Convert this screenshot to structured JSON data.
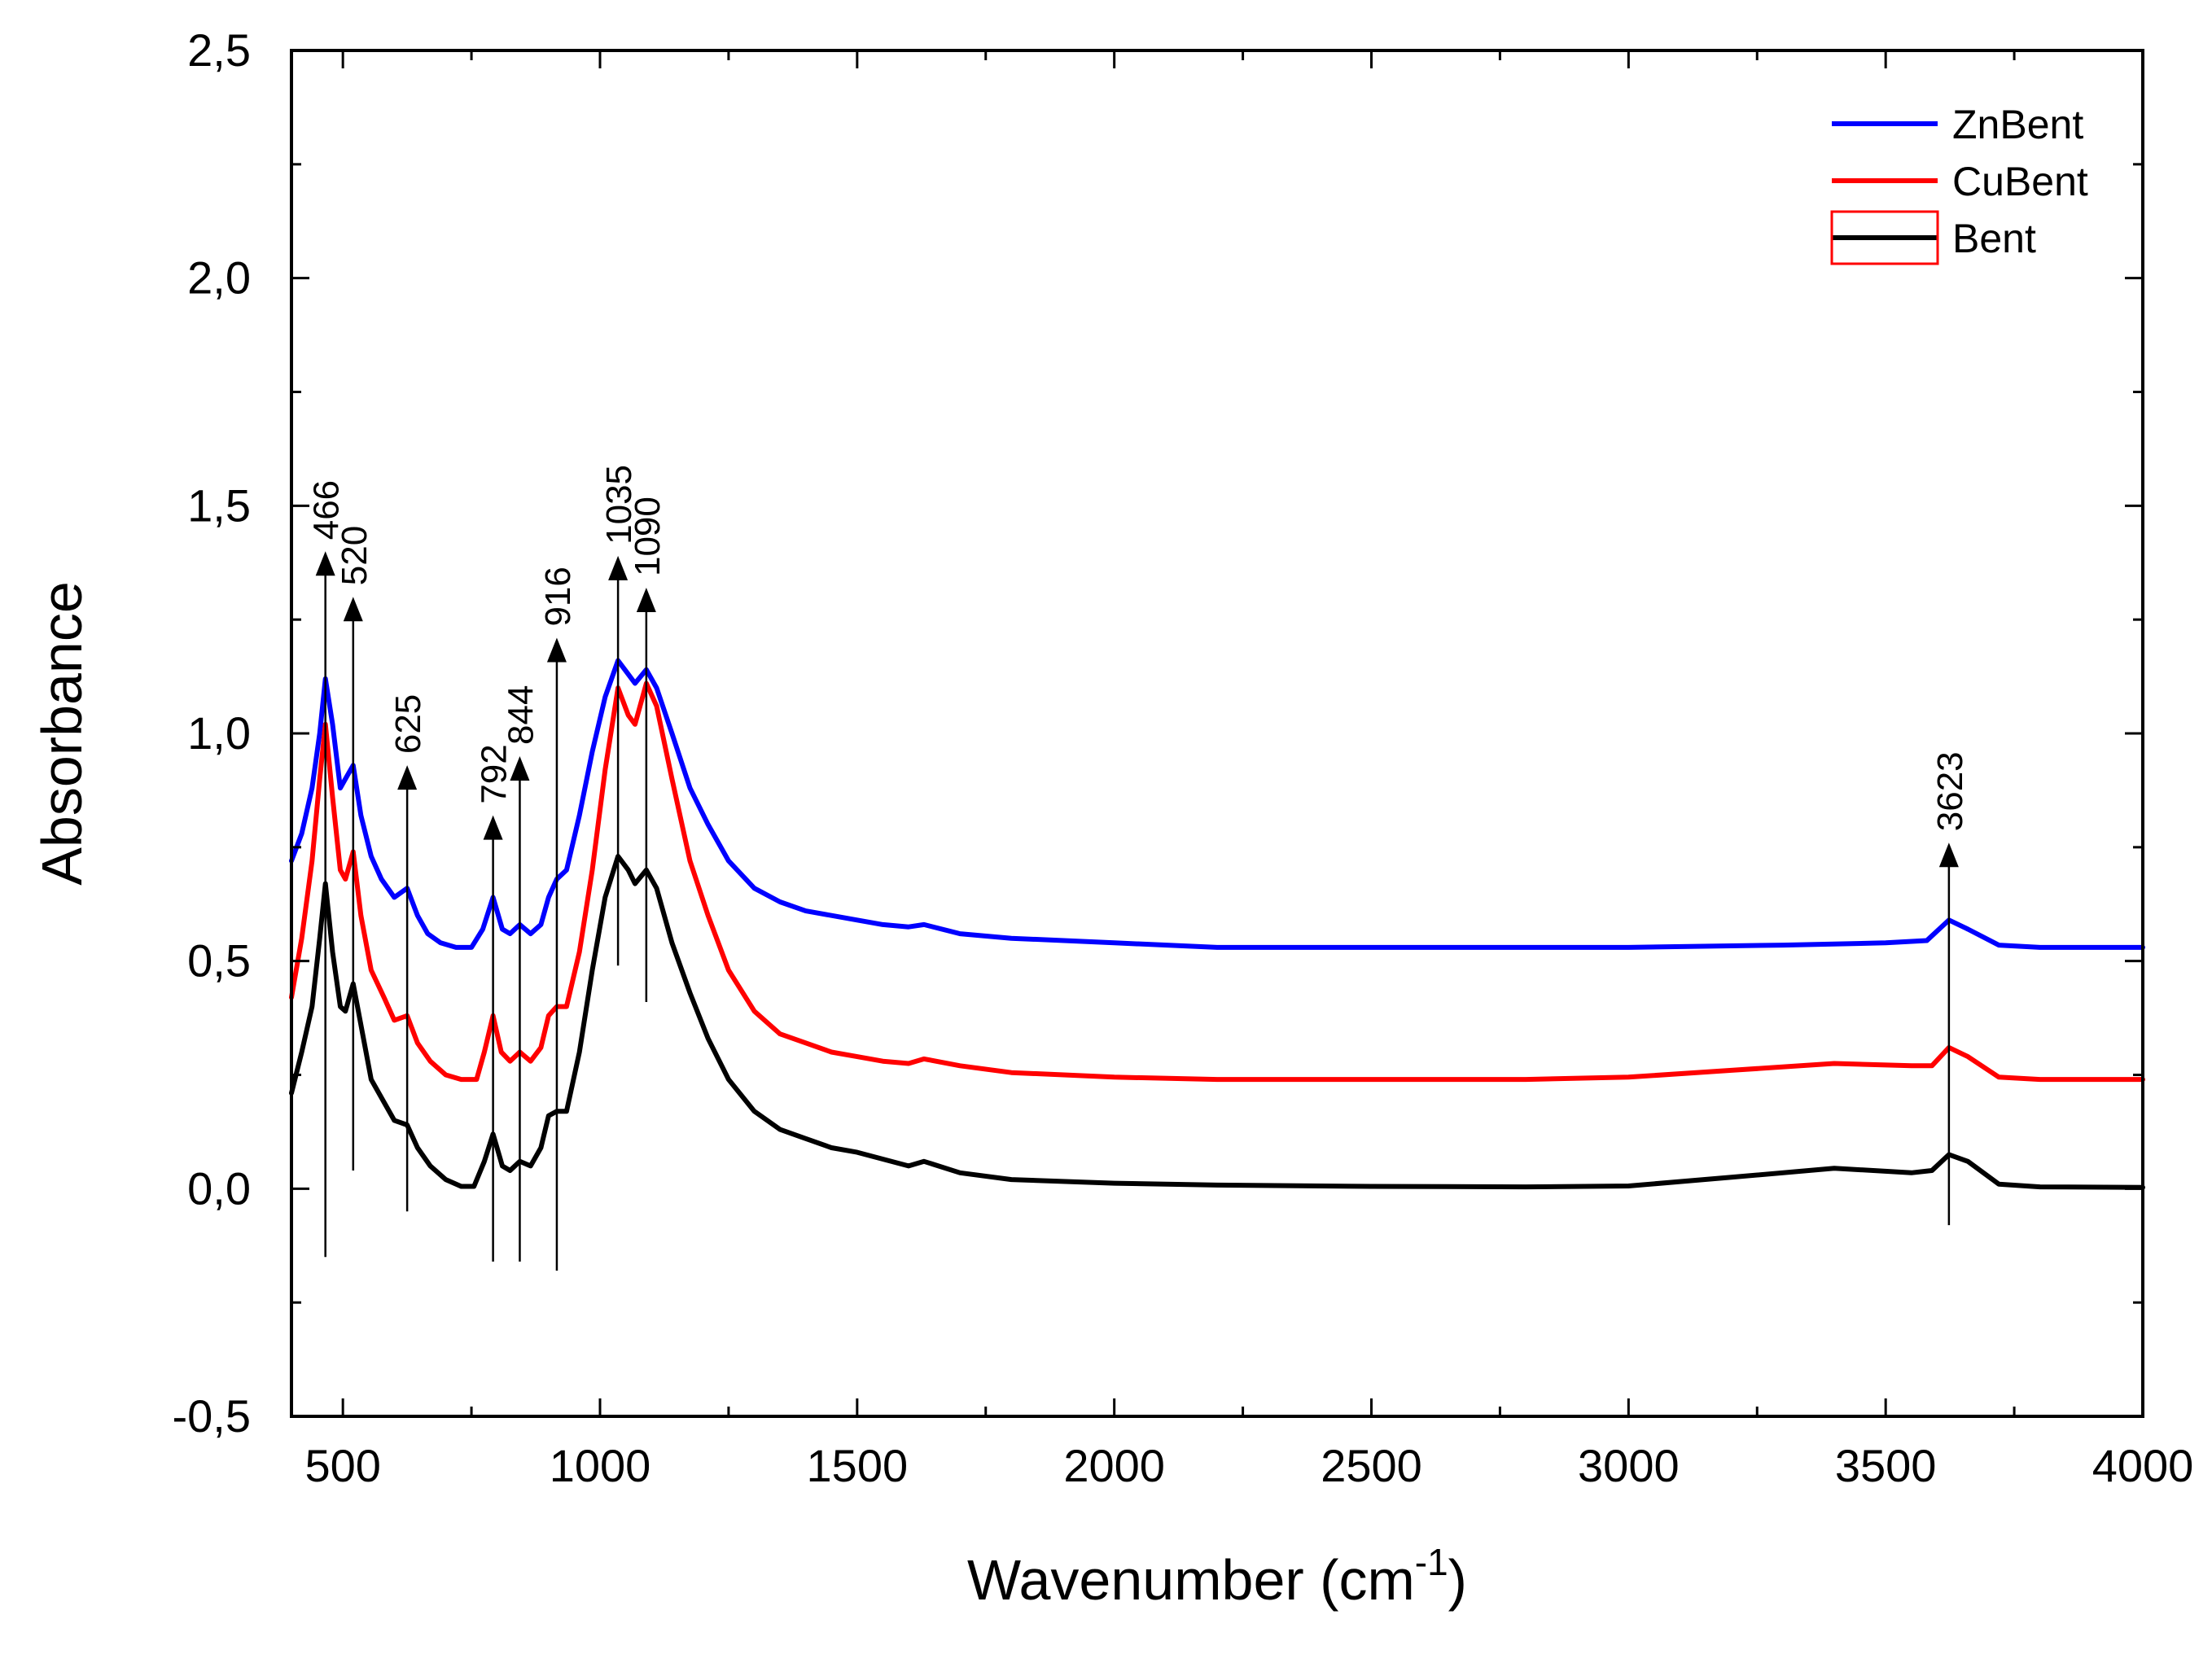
{
  "chart_data": {
    "type": "line",
    "title": "",
    "xlabel": "Wavenumber (cm",
    "xlabel_superscript": "-1",
    "xlabel_suffix": ")",
    "ylabel": "Absorbance",
    "xlim": [
      400,
      4000
    ],
    "ylim": [
      -0.5,
      2.5
    ],
    "xticks": [
      500,
      1000,
      1500,
      2000,
      2500,
      3000,
      3500,
      4000
    ],
    "xtick_labels": [
      "500",
      "1000",
      "1500",
      "2000",
      "2500",
      "3000",
      "3500",
      "4000"
    ],
    "yticks": [
      -0.5,
      0.0,
      0.5,
      1.0,
      1.5,
      2.0,
      2.5
    ],
    "ytick_labels": [
      "-0,5",
      "0,0",
      "0,5",
      "1,0",
      "1,5",
      "2,0",
      "2,5"
    ],
    "grid": false,
    "legend_position": "top-right",
    "series": [
      {
        "name": "ZnBent",
        "color": "#0000ff",
        "points": [
          [
            400,
            0.72
          ],
          [
            420,
            0.78
          ],
          [
            440,
            0.88
          ],
          [
            455,
            1.0
          ],
          [
            466,
            1.12
          ],
          [
            480,
            1.02
          ],
          [
            495,
            0.88
          ],
          [
            505,
            0.9
          ],
          [
            520,
            0.93
          ],
          [
            535,
            0.82
          ],
          [
            555,
            0.73
          ],
          [
            575,
            0.68
          ],
          [
            600,
            0.64
          ],
          [
            625,
            0.66
          ],
          [
            645,
            0.6
          ],
          [
            665,
            0.56
          ],
          [
            690,
            0.54
          ],
          [
            720,
            0.53
          ],
          [
            750,
            0.53
          ],
          [
            772,
            0.57
          ],
          [
            792,
            0.64
          ],
          [
            810,
            0.57
          ],
          [
            825,
            0.56
          ],
          [
            844,
            0.58
          ],
          [
            865,
            0.56
          ],
          [
            885,
            0.58
          ],
          [
            900,
            0.64
          ],
          [
            916,
            0.68
          ],
          [
            935,
            0.7
          ],
          [
            960,
            0.82
          ],
          [
            985,
            0.96
          ],
          [
            1010,
            1.08
          ],
          [
            1035,
            1.16
          ],
          [
            1055,
            1.13
          ],
          [
            1068,
            1.11
          ],
          [
            1090,
            1.14
          ],
          [
            1110,
            1.1
          ],
          [
            1140,
            1.0
          ],
          [
            1175,
            0.88
          ],
          [
            1210,
            0.8
          ],
          [
            1250,
            0.72
          ],
          [
            1300,
            0.66
          ],
          [
            1350,
            0.63
          ],
          [
            1400,
            0.61
          ],
          [
            1450,
            0.6
          ],
          [
            1500,
            0.59
          ],
          [
            1550,
            0.58
          ],
          [
            1600,
            0.575
          ],
          [
            1630,
            0.58
          ],
          [
            1700,
            0.56
          ],
          [
            1800,
            0.55
          ],
          [
            2000,
            0.54
          ],
          [
            2200,
            0.53
          ],
          [
            2500,
            0.53
          ],
          [
            3000,
            0.53
          ],
          [
            3300,
            0.535
          ],
          [
            3500,
            0.54
          ],
          [
            3580,
            0.545
          ],
          [
            3623,
            0.59
          ],
          [
            3660,
            0.57
          ],
          [
            3720,
            0.535
          ],
          [
            3800,
            0.53
          ],
          [
            4000,
            0.53
          ]
        ]
      },
      {
        "name": "CuBent",
        "color": "#ff0000",
        "points": [
          [
            400,
            0.42
          ],
          [
            420,
            0.55
          ],
          [
            440,
            0.72
          ],
          [
            455,
            0.9
          ],
          [
            466,
            1.02
          ],
          [
            480,
            0.86
          ],
          [
            495,
            0.7
          ],
          [
            505,
            0.68
          ],
          [
            520,
            0.74
          ],
          [
            535,
            0.6
          ],
          [
            555,
            0.48
          ],
          [
            580,
            0.42
          ],
          [
            600,
            0.37
          ],
          [
            625,
            0.38
          ],
          [
            645,
            0.32
          ],
          [
            670,
            0.28
          ],
          [
            700,
            0.25
          ],
          [
            730,
            0.24
          ],
          [
            760,
            0.24
          ],
          [
            775,
            0.3
          ],
          [
            792,
            0.38
          ],
          [
            808,
            0.3
          ],
          [
            825,
            0.28
          ],
          [
            844,
            0.3
          ],
          [
            865,
            0.28
          ],
          [
            885,
            0.31
          ],
          [
            900,
            0.38
          ],
          [
            916,
            0.4
          ],
          [
            935,
            0.4
          ],
          [
            960,
            0.52
          ],
          [
            985,
            0.7
          ],
          [
            1010,
            0.92
          ],
          [
            1035,
            1.1
          ],
          [
            1055,
            1.04
          ],
          [
            1068,
            1.02
          ],
          [
            1090,
            1.11
          ],
          [
            1110,
            1.06
          ],
          [
            1140,
            0.9
          ],
          [
            1175,
            0.72
          ],
          [
            1210,
            0.6
          ],
          [
            1250,
            0.48
          ],
          [
            1300,
            0.39
          ],
          [
            1350,
            0.34
          ],
          [
            1400,
            0.32
          ],
          [
            1450,
            0.3
          ],
          [
            1500,
            0.29
          ],
          [
            1550,
            0.28
          ],
          [
            1600,
            0.275
          ],
          [
            1630,
            0.285
          ],
          [
            1700,
            0.27
          ],
          [
            1800,
            0.255
          ],
          [
            2000,
            0.245
          ],
          [
            2200,
            0.24
          ],
          [
            2500,
            0.24
          ],
          [
            2800,
            0.24
          ],
          [
            3000,
            0.245
          ],
          [
            3200,
            0.26
          ],
          [
            3400,
            0.275
          ],
          [
            3550,
            0.27
          ],
          [
            3590,
            0.27
          ],
          [
            3623,
            0.31
          ],
          [
            3660,
            0.29
          ],
          [
            3720,
            0.245
          ],
          [
            3800,
            0.24
          ],
          [
            4000,
            0.24
          ]
        ]
      },
      {
        "name": "Bent",
        "color": "#000000",
        "points": [
          [
            400,
            0.21
          ],
          [
            420,
            0.3
          ],
          [
            440,
            0.4
          ],
          [
            455,
            0.55
          ],
          [
            466,
            0.67
          ],
          [
            480,
            0.52
          ],
          [
            495,
            0.4
          ],
          [
            505,
            0.39
          ],
          [
            520,
            0.45
          ],
          [
            535,
            0.36
          ],
          [
            555,
            0.24
          ],
          [
            580,
            0.19
          ],
          [
            600,
            0.15
          ],
          [
            625,
            0.14
          ],
          [
            645,
            0.09
          ],
          [
            670,
            0.05
          ],
          [
            700,
            0.02
          ],
          [
            730,
            0.005
          ],
          [
            755,
            0.005
          ],
          [
            775,
            0.06
          ],
          [
            792,
            0.12
          ],
          [
            810,
            0.05
          ],
          [
            825,
            0.04
          ],
          [
            844,
            0.06
          ],
          [
            865,
            0.05
          ],
          [
            885,
            0.09
          ],
          [
            900,
            0.16
          ],
          [
            916,
            0.17
          ],
          [
            935,
            0.17
          ],
          [
            960,
            0.3
          ],
          [
            985,
            0.48
          ],
          [
            1010,
            0.64
          ],
          [
            1035,
            0.73
          ],
          [
            1055,
            0.7
          ],
          [
            1068,
            0.67
          ],
          [
            1090,
            0.7
          ],
          [
            1110,
            0.66
          ],
          [
            1140,
            0.54
          ],
          [
            1175,
            0.43
          ],
          [
            1210,
            0.33
          ],
          [
            1250,
            0.24
          ],
          [
            1300,
            0.17
          ],
          [
            1350,
            0.13
          ],
          [
            1400,
            0.11
          ],
          [
            1450,
            0.09
          ],
          [
            1500,
            0.08
          ],
          [
            1550,
            0.065
          ],
          [
            1600,
            0.05
          ],
          [
            1630,
            0.06
          ],
          [
            1700,
            0.035
          ],
          [
            1800,
            0.02
          ],
          [
            2000,
            0.012
          ],
          [
            2200,
            0.008
          ],
          [
            2500,
            0.005
          ],
          [
            2800,
            0.004
          ],
          [
            3000,
            0.006
          ],
          [
            3200,
            0.025
          ],
          [
            3400,
            0.045
          ],
          [
            3550,
            0.035
          ],
          [
            3590,
            0.04
          ],
          [
            3623,
            0.075
          ],
          [
            3660,
            0.06
          ],
          [
            3720,
            0.01
          ],
          [
            3800,
            0.004
          ],
          [
            4000,
            0.003
          ]
        ]
      }
    ],
    "peak_annotations": [
      {
        "label": "466",
        "x": 466,
        "arrow_top": 1.4,
        "line_bottom": -0.15
      },
      {
        "label": "520",
        "x": 520,
        "arrow_top": 1.3,
        "line_bottom": 0.04
      },
      {
        "label": "625",
        "x": 625,
        "arrow_top": 0.93,
        "line_bottom": -0.05
      },
      {
        "label": "792",
        "x": 792,
        "arrow_top": 0.82,
        "line_bottom": -0.16
      },
      {
        "label": "844",
        "x": 844,
        "arrow_top": 0.95,
        "line_bottom": -0.16
      },
      {
        "label": "916",
        "x": 916,
        "arrow_top": 1.21,
        "line_bottom": -0.18
      },
      {
        "label": "1035",
        "x": 1035,
        "arrow_top": 1.39,
        "line_bottom": 0.49
      },
      {
        "label": "1090",
        "x": 1090,
        "arrow_top": 1.32,
        "line_bottom": 0.41
      },
      {
        "label": "3623",
        "x": 3623,
        "arrow_top": 0.76,
        "line_bottom": -0.08
      }
    ]
  }
}
